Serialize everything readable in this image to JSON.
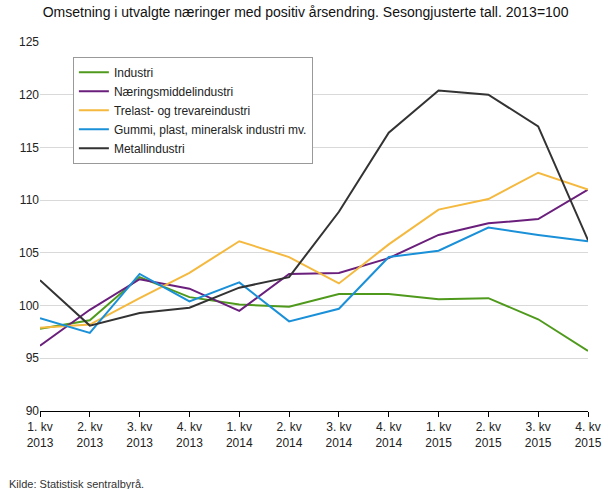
{
  "chart_data": {
    "type": "line",
    "title": "Omsetning i utvalgte næringer med positiv årsendring. Sesongjusterte tall. 2013=100",
    "source": "Kilde: Statistisk sentralbyrå.",
    "categories": [
      "1. kv\n2013",
      "2. kv\n2013",
      "3. kv\n2013",
      "4. kv\n2013",
      "1. kv\n2014",
      "2. kv\n2014",
      "3. kv\n2014",
      "4. kv\n2014",
      "1. kv\n2015",
      "2. kv\n2015",
      "3. kv\n2015",
      "4. kv\n2015"
    ],
    "series": [
      {
        "name": "Industri",
        "color": "#4f9a1c",
        "values": [
          97.8,
          98.6,
          102.7,
          100.8,
          100.1,
          99.9,
          101.1,
          101.1,
          100.6,
          100.7,
          98.7,
          95.7
        ]
      },
      {
        "name": "Næringsmiddelindustri",
        "color": "#6b1f7c",
        "values": [
          96.2,
          99.6,
          102.5,
          101.6,
          99.5,
          103.0,
          103.1,
          104.5,
          106.7,
          107.8,
          108.2,
          111.0
        ]
      },
      {
        "name": "Trelast- og trevareindustri",
        "color": "#f4b93e",
        "values": [
          97.9,
          98.2,
          100.7,
          103.1,
          106.1,
          104.6,
          102.1,
          105.8,
          109.1,
          110.1,
          112.6,
          111.0
        ]
      },
      {
        "name": "Gummi, plast, mineralsk industri mv.",
        "color": "#1a90d8",
        "values": [
          98.8,
          97.4,
          103.0,
          100.4,
          102.2,
          98.5,
          99.7,
          104.6,
          105.2,
          107.4,
          106.7,
          106.1
        ]
      },
      {
        "name": "Metallindustri",
        "color": "#333333",
        "values": [
          102.4,
          98.1,
          99.3,
          99.8,
          101.7,
          102.7,
          108.9,
          116.4,
          120.4,
          120.0,
          117.0,
          106.2
        ]
      }
    ],
    "ylim": [
      90,
      125
    ],
    "yticks": [
      90,
      95,
      100,
      105,
      110,
      115,
      120,
      125
    ],
    "grid": true,
    "legend": "upper left"
  }
}
